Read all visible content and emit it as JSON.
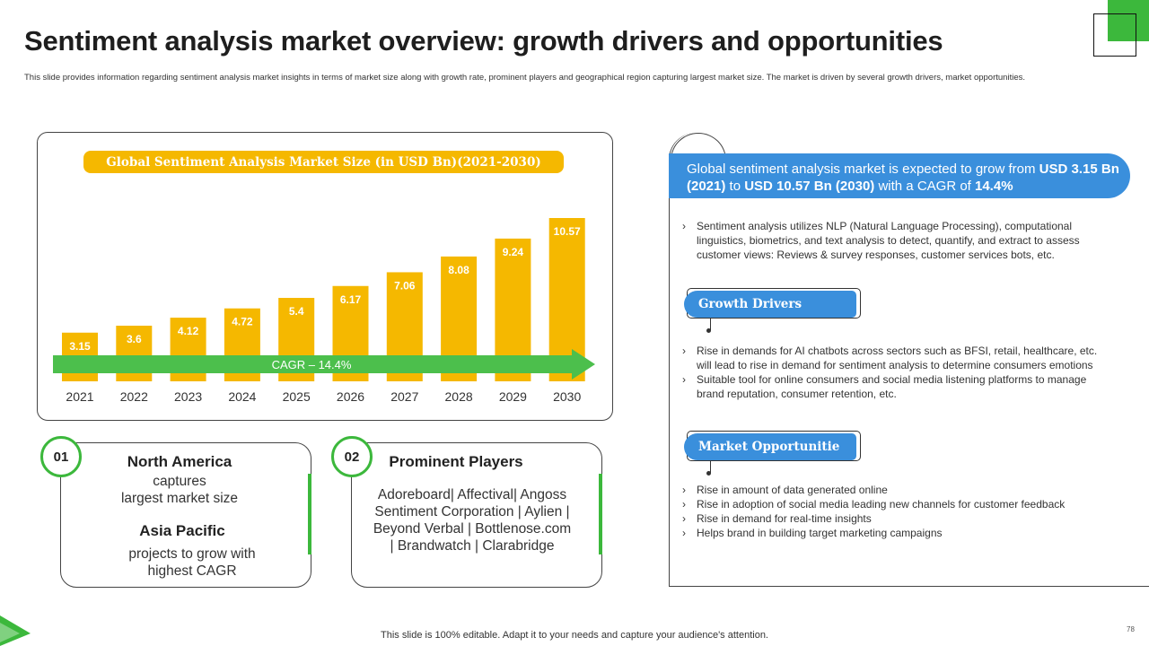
{
  "title": "Sentiment analysis market overview: growth drivers and opportunities",
  "subtitle": "This slide provides information regarding sentiment analysis market insights in terms of market size along with growth rate, prominent players and geographical region capturing largest market size. The market is driven by several growth drivers, market opportunities.",
  "chart_data": {
    "type": "bar",
    "title": "Global Sentiment Analysis Market Size (in USD Bn)(2021-2030)",
    "categories": [
      "2021",
      "2022",
      "2023",
      "2024",
      "2025",
      "2026",
      "2027",
      "2028",
      "2029",
      "2030"
    ],
    "values": [
      3.15,
      3.6,
      4.12,
      4.72,
      5.4,
      6.17,
      7.06,
      8.08,
      9.24,
      10.57
    ],
    "value_labels": [
      "3.15",
      "3.6",
      "4.12",
      "4.72",
      "5.4",
      "6.17",
      "7.06",
      "8.08",
      "9.24",
      "10.57"
    ],
    "ylim": [
      0,
      11
    ],
    "xlabel": "",
    "ylabel": "",
    "annotation": "CAGR – 14.4%",
    "bar_color": "#f5b800",
    "arrow_color": "#4cbf4c"
  },
  "cards": [
    {
      "badge": "01",
      "heading1": "North America",
      "text1a": "captures",
      "text1b": "largest market size",
      "heading2": "Asia Pacific",
      "text2a": "projects to grow with",
      "text2b": "highest CAGR"
    },
    {
      "badge": "02",
      "heading": "Prominent Players",
      "lines": [
        "Adoreboard| Affectival| Angoss",
        "Sentiment Corporation | Aylien |",
        "Beyond Verbal | Bottlenose.com",
        "| Brandwatch | Clarabridge"
      ]
    }
  ],
  "banner": {
    "t1": "Global sentiment analysis market is expected to grow from ",
    "b1": "USD 3.15 Bn (2021)",
    "t2": " to ",
    "b2": "USD 10.57 Bn (2030)",
    "t3": " with a CAGR of ",
    "b3": "14.4%"
  },
  "intro_bullets": [
    "Sentiment analysis utilizes NLP (Natural Language Processing), computational linguistics, biometrics, and text analysis to detect, quantify, and extract to assess customer views: Reviews  & survey responses, customer services bots, etc."
  ],
  "growth_drivers": {
    "label": "Growth Drivers",
    "bullets": [
      "Rise in demands for AI chatbots across sectors such as BFSI, retail, healthcare, etc. will lead to rise in demand for sentiment analysis to determine consumers emotions",
      "Suitable tool for online consumers and social media listening platforms to manage brand reputation, consumer retention, etc."
    ]
  },
  "market_opportunity": {
    "label": "Market Opportunitie",
    "bullets": [
      "Rise in amount of data generated online",
      "Rise in adoption of social media leading new channels for customer feedback",
      "Rise in demand for real-time insights",
      "Helps brand in building target marketing campaigns"
    ]
  },
  "footer": "This slide is 100% editable. Adapt it to your needs and capture your audience's attention.",
  "page_number": "78",
  "colors": {
    "accent_green": "#3cb83c",
    "accent_blue": "#3a8fdc",
    "bar_yellow": "#f5b800"
  }
}
